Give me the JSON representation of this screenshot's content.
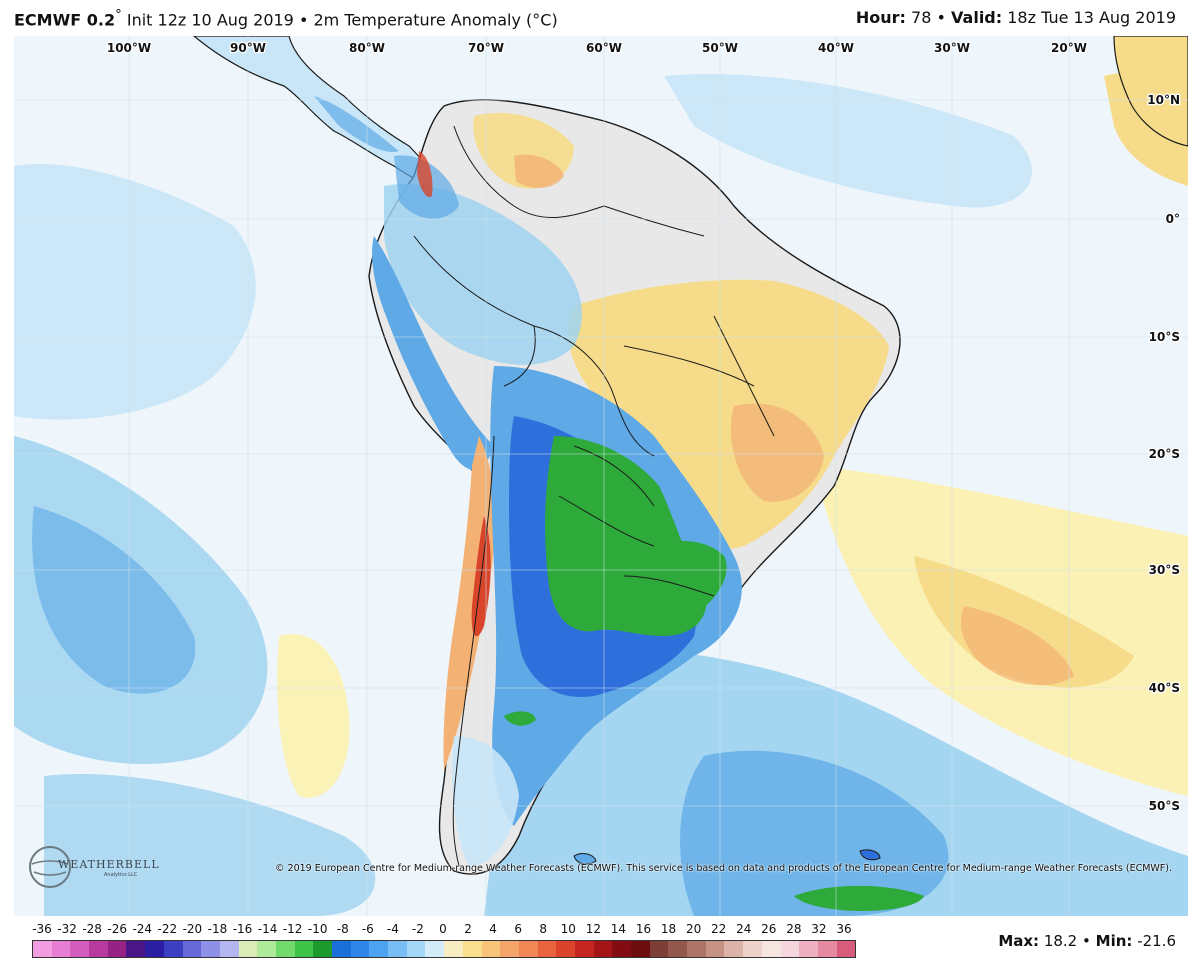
{
  "header": {
    "model": "ECMWF 0.2",
    "degree": "°",
    "init": "Init 12z 10 Aug 2019",
    "bullet": "•",
    "product": "2m Temperature Anomaly (°C)",
    "hour_label": "Hour:",
    "hour_value": "78",
    "valid_label": "Valid:",
    "valid_value": "18z Tue 13 Aug 2019"
  },
  "map": {
    "longitudes": [
      "100°W",
      "90°W",
      "80°W",
      "70°W",
      "60°W",
      "50°W",
      "40°W",
      "30°W",
      "20°W"
    ],
    "latitudes": [
      "10°N",
      "0°",
      "10°S",
      "20°S",
      "30°S",
      "40°S",
      "50°S"
    ],
    "copyright": "© 2019 European Centre for Medium-range Weather Forecasts (ECMWF). This service is based on data and products of the European Centre for Medium-range Weather Forecasts (ECMWF).",
    "colors": {
      "ocean": "#eef6fb",
      "land_neutral": "#e8e8e8",
      "pale_blue": "#c8e6f7",
      "light_blue": "#9fd3f0",
      "mid_blue": "#5ea9e6",
      "deep_blue": "#2f6fdc",
      "green": "#2eaa3a",
      "pale_yellow": "#fbf1b4",
      "yellow": "#f6dc8a",
      "orange": "#f3b174",
      "red": "#d9452b",
      "border": "#1a1a1a"
    }
  },
  "logo": {
    "name": "WEATHERBELL",
    "sub": "Analytics LLC"
  },
  "legend": {
    "ticks": [
      "-36",
      "-32",
      "-28",
      "-26",
      "-24",
      "-22",
      "-20",
      "-18",
      "-16",
      "-14",
      "-12",
      "-10",
      "-8",
      "-6",
      "-4",
      "-2",
      "0",
      "2",
      "4",
      "6",
      "8",
      "10",
      "12",
      "14",
      "16",
      "18",
      "20",
      "22",
      "24",
      "26",
      "28",
      "32",
      "36"
    ],
    "colors": [
      "#f29ce2",
      "#e67ed3",
      "#d45dbd",
      "#b93a9f",
      "#962383",
      "#4b1688",
      "#2b1ea3",
      "#3d3fc2",
      "#6767d8",
      "#8e8fe6",
      "#b4b6ef",
      "#dcecb8",
      "#aeea9a",
      "#72da6c",
      "#3ec449",
      "#1d9a2e",
      "#1b6fd8",
      "#2f86e8",
      "#4ea2f2",
      "#78bdf4",
      "#a4d6f6",
      "#d4ecf8",
      "#f6eec2",
      "#f9de90",
      "#f7c47a",
      "#f4a66a",
      "#f08755",
      "#e9633f",
      "#dc432b",
      "#c42520",
      "#a41518",
      "#830c12",
      "#6e0d0f",
      "#7c3e36",
      "#93584d",
      "#ad7469",
      "#c69285",
      "#dcb3a8",
      "#ecd2ca",
      "#f6e6e1",
      "#f5d6de",
      "#eeb0c0",
      "#e58aa2",
      "#d85d7c"
    ]
  },
  "stats": {
    "max_label": "Max:",
    "max_value": "18.2",
    "min_label": "Min:",
    "min_value": "-21.6"
  }
}
